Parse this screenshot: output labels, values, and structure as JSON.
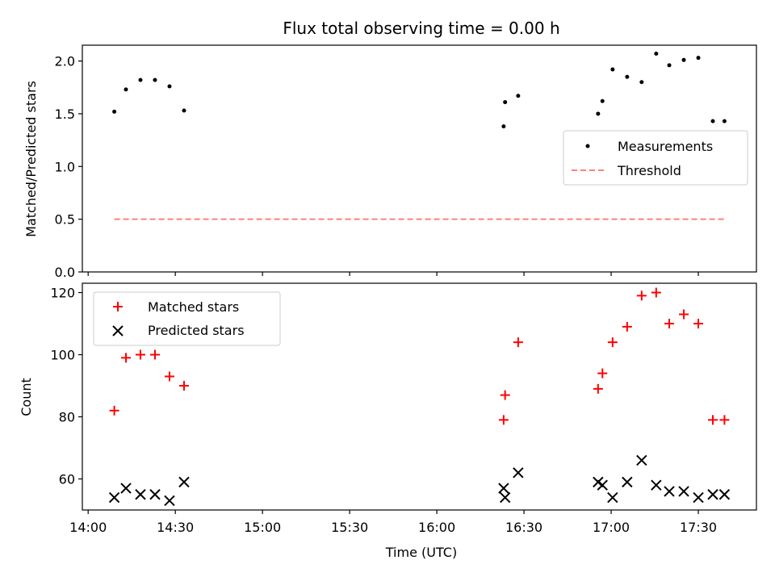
{
  "chart_data": [
    {
      "type": "scatter",
      "title": "Flux total observing time = 0.00 h",
      "ylabel": "Matched/Predicted stars",
      "xlabel": "",
      "ylim": [
        0,
        2.15
      ],
      "yticks": [
        0.0,
        0.5,
        1.0,
        1.5,
        2.0
      ],
      "ytick_labels": [
        "0.0",
        "0.5",
        "1.0",
        "1.5",
        "2.0"
      ],
      "xlim_minutes": [
        838,
        1070
      ],
      "xticks_minutes": [
        840,
        870,
        900,
        930,
        960,
        990,
        1020,
        1050
      ],
      "xtick_labels": [
        "14:00",
        "14:30",
        "15:00",
        "15:30",
        "16:00",
        "16:30",
        "17:00",
        "17:30"
      ],
      "xtick_labels_visible": false,
      "legend": {
        "position": "center-right",
        "entries": [
          "Measurements",
          "Threshold"
        ]
      },
      "series": [
        {
          "name": "Measurements",
          "kind": "scatter",
          "marker": "dot",
          "color": "#000000",
          "x_minutes": [
            849,
            853,
            858,
            863,
            868,
            873,
            983,
            983.5,
            988,
            1015.5,
            1017,
            1020.5,
            1025.5,
            1030.5,
            1035.5,
            1040,
            1045,
            1050,
            1055,
            1059
          ],
          "values": [
            1.52,
            1.73,
            1.82,
            1.82,
            1.76,
            1.53,
            1.38,
            1.61,
            1.67,
            1.5,
            1.62,
            1.92,
            1.85,
            1.8,
            2.07,
            1.96,
            2.01,
            2.03,
            1.43,
            1.43
          ]
        },
        {
          "name": "Threshold",
          "kind": "line",
          "style": "dashed",
          "color": "#ff7f7f",
          "x_minutes": [
            849,
            1059
          ],
          "values": [
            0.5,
            0.5
          ]
        }
      ]
    },
    {
      "type": "scatter",
      "title": "",
      "ylabel": "Count",
      "xlabel": "Time (UTC)",
      "ylim": [
        50,
        123
      ],
      "yticks": [
        60,
        80,
        100,
        120
      ],
      "ytick_labels": [
        "60",
        "80",
        "100",
        "120"
      ],
      "xlim_minutes": [
        838,
        1070
      ],
      "xticks_minutes": [
        840,
        870,
        900,
        930,
        960,
        990,
        1020,
        1050
      ],
      "xtick_labels": [
        "14:00",
        "14:30",
        "15:00",
        "15:30",
        "16:00",
        "16:30",
        "17:00",
        "17:30"
      ],
      "xtick_labels_visible": true,
      "legend": {
        "position": "top-left",
        "entries": [
          "Matched stars",
          "Predicted stars"
        ]
      },
      "series": [
        {
          "name": "Matched stars",
          "kind": "scatter",
          "marker": "plus",
          "color": "#ff0000",
          "x_minutes": [
            849,
            853,
            858,
            863,
            868,
            873,
            983,
            983.5,
            988,
            1015.5,
            1017,
            1020.5,
            1025.5,
            1030.5,
            1035.5,
            1040,
            1045,
            1050,
            1055,
            1059
          ],
          "values": [
            82,
            99,
            100,
            100,
            93,
            90,
            79,
            87,
            104,
            89,
            94,
            104,
            109,
            119,
            120,
            110,
            113,
            110,
            79,
            79
          ]
        },
        {
          "name": "Predicted stars",
          "kind": "scatter",
          "marker": "x",
          "color": "#000000",
          "x_minutes": [
            849,
            853,
            858,
            863,
            868,
            873,
            983,
            983.5,
            988,
            1015.5,
            1017,
            1020.5,
            1025.5,
            1030.5,
            1035.5,
            1040,
            1045,
            1050,
            1055,
            1059
          ],
          "values": [
            54,
            57,
            55,
            55,
            53,
            59,
            57,
            54,
            62,
            59,
            58,
            54,
            59,
            66,
            58,
            56,
            56,
            54,
            55,
            55
          ]
        }
      ]
    }
  ]
}
